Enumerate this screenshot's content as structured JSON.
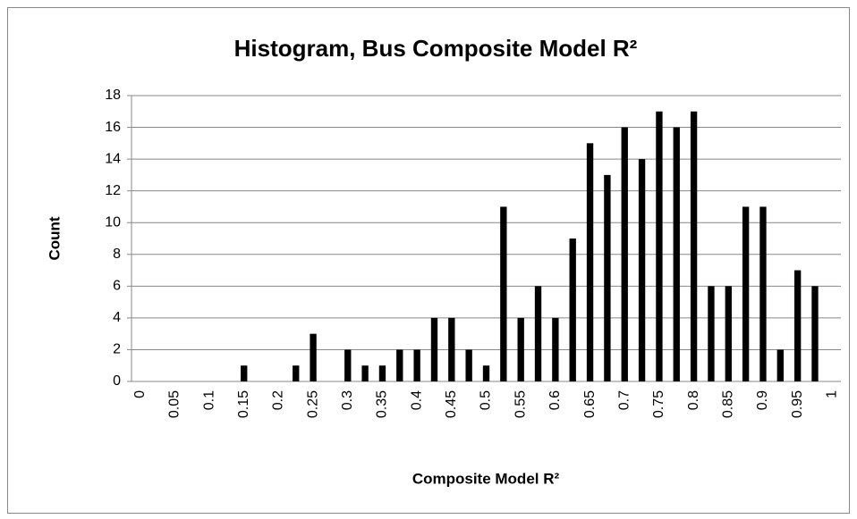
{
  "chart_data": {
    "type": "bar",
    "title": "Histogram, Bus Composite Model R²",
    "x_label": "Composite Model R²",
    "y_label": "Count",
    "categories": [
      "0",
      null,
      "0.05",
      null,
      "0.1",
      null,
      "0.15",
      null,
      "0.2",
      null,
      "0.25",
      null,
      "0.3",
      null,
      "0.35",
      null,
      "0.4",
      null,
      "0.45",
      null,
      "0.5",
      null,
      "0.55",
      null,
      "0.6",
      null,
      "0.65",
      null,
      "0.7",
      null,
      "0.75",
      null,
      "0.8",
      null,
      "0.85",
      null,
      "0.9",
      null,
      "0.95",
      null,
      "1"
    ],
    "values": [
      0,
      0,
      0,
      0,
      0,
      0,
      1,
      0,
      0,
      1,
      3,
      0,
      2,
      1,
      1,
      2,
      2,
      4,
      4,
      2,
      1,
      11,
      4,
      6,
      4,
      9,
      15,
      13,
      16,
      14,
      17,
      16,
      17,
      6,
      6,
      11,
      11,
      2,
      7,
      6,
      0
    ],
    "color": "#000000",
    "ylim": [
      0,
      18
    ],
    "yticks": [
      0,
      2,
      4,
      6,
      8,
      10,
      12,
      14,
      16,
      18
    ],
    "grid": true
  }
}
